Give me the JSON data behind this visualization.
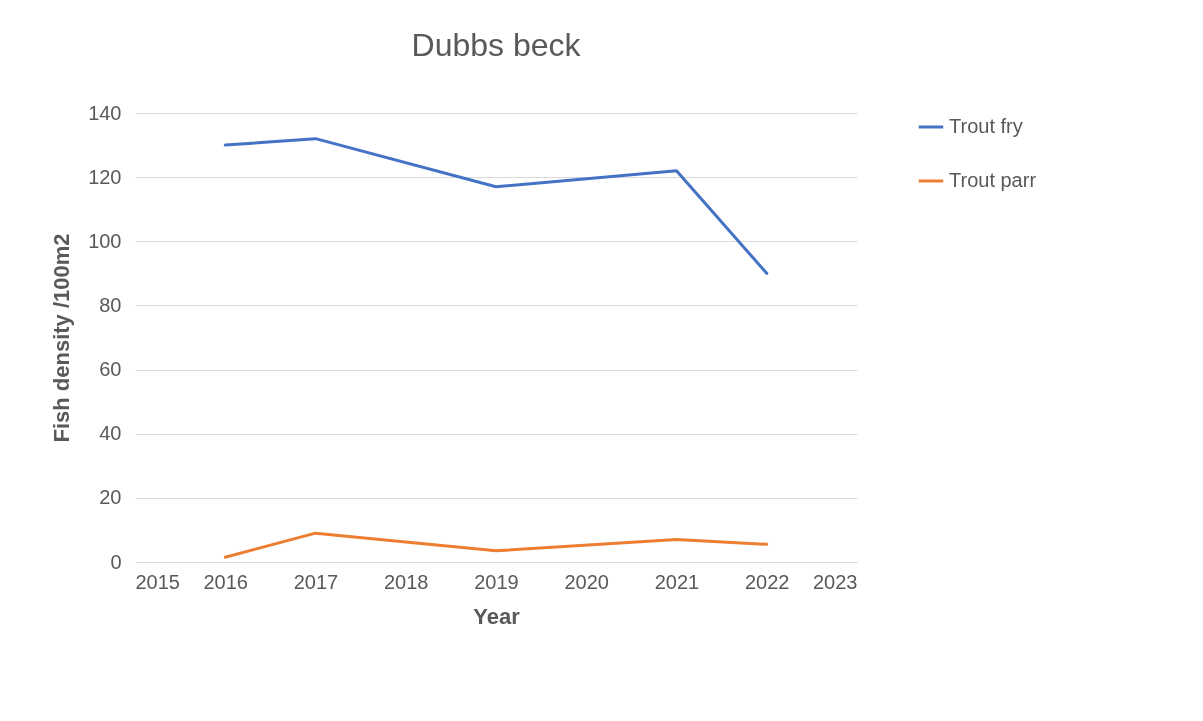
{
  "chart_data": {
    "type": "line",
    "title": "Dubbs beck",
    "xlabel": "Year",
    "ylabel": "Fish density /100m2",
    "x": [
      2016,
      2017,
      2019,
      2021,
      2022
    ],
    "series": [
      {
        "name": "Trout fry",
        "color": "#4472c4",
        "values": [
          130,
          132,
          117,
          122,
          90
        ]
      },
      {
        "name": "Trout parr",
        "color": "#ed7d31",
        "values": [
          1.5,
          9,
          3.5,
          7,
          5.5
        ]
      }
    ],
    "xlim": [
      2015,
      2023
    ],
    "xticks": [
      2015,
      2016,
      2017,
      2018,
      2019,
      2020,
      2021,
      2022,
      2023
    ],
    "ylim": [
      0,
      140
    ],
    "yticks": [
      0,
      20,
      40,
      60,
      80,
      100,
      120,
      140
    ],
    "grid": "y",
    "legend": "right",
    "marker": "none",
    "line_style": "solid"
  }
}
